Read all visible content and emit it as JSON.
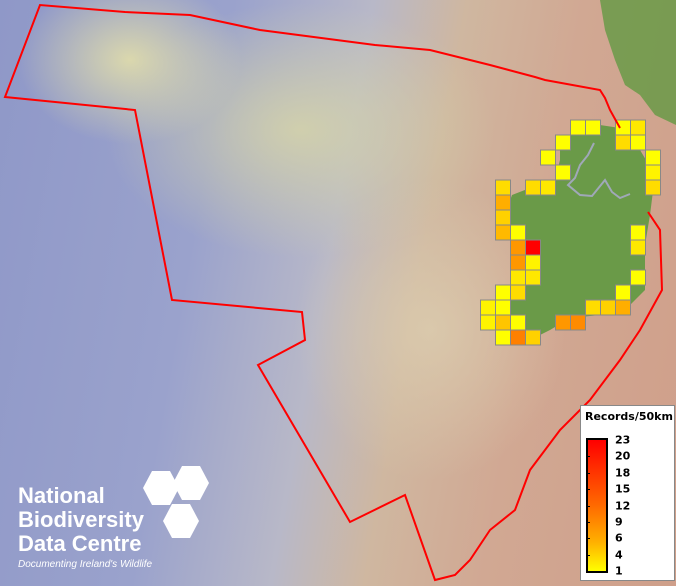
{
  "map": {
    "boundary_color": "#ff0000",
    "land_color": "#6a9a48",
    "cell_outline": "#888888"
  },
  "legend": {
    "title": "Records/50km",
    "ticks": [
      "23",
      "20",
      "18",
      "15",
      "12",
      "9",
      "6",
      "4",
      "1"
    ],
    "min": 1,
    "max": 23,
    "color_low": "#ffff00",
    "color_high": "#ff0000"
  },
  "logo": {
    "line1": "National",
    "line2": "Biodiversity",
    "line3": "Data Centre",
    "tagline": "Documenting Ireland's Wildlife"
  },
  "records": [
    {
      "col": 6,
      "row": 0,
      "count": 1
    },
    {
      "col": 7,
      "row": 0,
      "count": 1
    },
    {
      "col": 9,
      "row": 0,
      "count": 1
    },
    {
      "col": 10,
      "row": 0,
      "count": 3
    },
    {
      "col": 5,
      "row": 1,
      "count": 1
    },
    {
      "col": 9,
      "row": 1,
      "count": 4
    },
    {
      "col": 10,
      "row": 1,
      "count": 1
    },
    {
      "col": 4,
      "row": 2,
      "count": 1
    },
    {
      "col": 11,
      "row": 2,
      "count": 1
    },
    {
      "col": 5,
      "row": 3,
      "count": 1
    },
    {
      "col": 11,
      "row": 3,
      "count": 2
    },
    {
      "col": 1,
      "row": 4,
      "count": 4
    },
    {
      "col": 3,
      "row": 4,
      "count": 4
    },
    {
      "col": 4,
      "row": 4,
      "count": 3
    },
    {
      "col": 11,
      "row": 4,
      "count": 4
    },
    {
      "col": 1,
      "row": 5,
      "count": 8
    },
    {
      "col": 1,
      "row": 6,
      "count": 5
    },
    {
      "col": 1,
      "row": 7,
      "count": 7
    },
    {
      "col": 2,
      "row": 7,
      "count": 1
    },
    {
      "col": 10,
      "row": 7,
      "count": 1
    },
    {
      "col": 2,
      "row": 8,
      "count": 10
    },
    {
      "col": 3,
      "row": 8,
      "count": 23
    },
    {
      "col": 10,
      "row": 8,
      "count": 3
    },
    {
      "col": 2,
      "row": 9,
      "count": 10
    },
    {
      "col": 3,
      "row": 9,
      "count": 2
    },
    {
      "col": 2,
      "row": 10,
      "count": 3
    },
    {
      "col": 3,
      "row": 10,
      "count": 3
    },
    {
      "col": 10,
      "row": 10,
      "count": 1
    },
    {
      "col": 1,
      "row": 11,
      "count": 1
    },
    {
      "col": 2,
      "row": 11,
      "count": 4
    },
    {
      "col": 9,
      "row": 11,
      "count": 1
    },
    {
      "col": 0,
      "row": 12,
      "count": 2
    },
    {
      "col": 1,
      "row": 12,
      "count": 1
    },
    {
      "col": 7,
      "row": 12,
      "count": 4
    },
    {
      "col": 8,
      "row": 12,
      "count": 5
    },
    {
      "col": 9,
      "row": 12,
      "count": 8
    },
    {
      "col": 0,
      "row": 13,
      "count": 2
    },
    {
      "col": 1,
      "row": 13,
      "count": 6
    },
    {
      "col": 2,
      "row": 13,
      "count": 1
    },
    {
      "col": 5,
      "row": 13,
      "count": 10
    },
    {
      "col": 6,
      "row": 13,
      "count": 11
    },
    {
      "col": 1,
      "row": 14,
      "count": 1
    },
    {
      "col": 2,
      "row": 14,
      "count": 12
    },
    {
      "col": 3,
      "row": 14,
      "count": 5
    }
  ]
}
